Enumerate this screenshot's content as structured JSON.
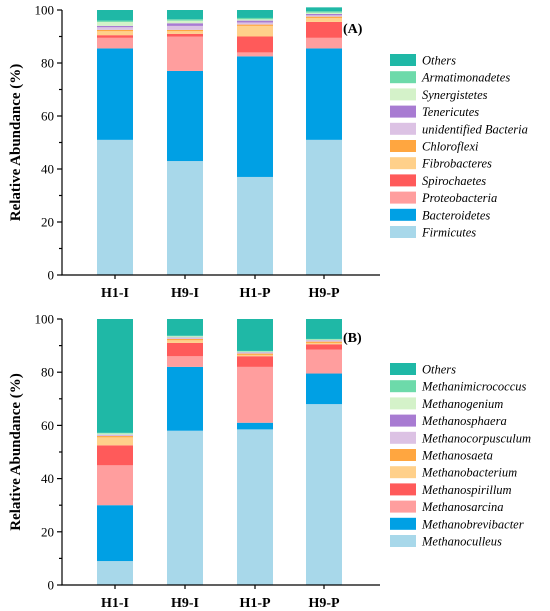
{
  "chart_data": [
    {
      "type": "bar",
      "stacked": true,
      "panel_label": "(A)",
      "ylabel": "Relative Abundance (%)",
      "ylim": [
        0,
        100
      ],
      "yticks": [
        "0",
        "20",
        "40",
        "60",
        "80",
        "100"
      ],
      "categories": [
        "H1-I",
        "H9-I",
        "H1-P",
        "H9-P"
      ],
      "legend_position": "right",
      "series": [
        {
          "name": "Firmicutes",
          "color": "#a8d8ea",
          "values": [
            51.0,
            43.0,
            37.0,
            51.0
          ]
        },
        {
          "name": "Bacteroidetes",
          "color": "#00a0e4",
          "values": [
            34.5,
            34.0,
            45.5,
            34.5
          ]
        },
        {
          "name": "Proteobacteria",
          "color": "#ff9e9e",
          "values": [
            4.0,
            13.0,
            1.5,
            4.0
          ]
        },
        {
          "name": "Spirochaetes",
          "color": "#ff5a5a",
          "values": [
            1.0,
            1.0,
            6.0,
            6.0
          ]
        },
        {
          "name": "Fibrobacteres",
          "color": "#ffd08a",
          "values": [
            1.5,
            1.0,
            4.0,
            1.5
          ]
        },
        {
          "name": "Chloroflexi",
          "color": "#ffa640",
          "values": [
            0.5,
            0.5,
            0.5,
            0.5
          ]
        },
        {
          "name": "unidentified Bacteria",
          "color": "#dcc2e4",
          "values": [
            1.0,
            1.5,
            0.8,
            0.5
          ]
        },
        {
          "name": "Tenericutes",
          "color": "#a87bd2",
          "values": [
            0.5,
            1.0,
            0.7,
            0.5
          ]
        },
        {
          "name": "Synergistetes",
          "color": "#d4f2c9",
          "values": [
            1.5,
            1.0,
            0.5,
            0.5
          ]
        },
        {
          "name": "Armatimonadetes",
          "color": "#6ddaaa",
          "values": [
            0.5,
            0.5,
            0.5,
            0.5
          ]
        },
        {
          "name": "Others",
          "color": "#1fb8a6",
          "values": [
            4.0,
            3.5,
            3.0,
            1.5
          ]
        }
      ]
    },
    {
      "type": "bar",
      "stacked": true,
      "panel_label": "(B)",
      "ylabel": "Relative Abundance (%)",
      "ylim": [
        0,
        100
      ],
      "yticks": [
        "0",
        "20",
        "40",
        "60",
        "80",
        "100"
      ],
      "categories": [
        "H1-I",
        "H9-I",
        "H1-P",
        "H9-P"
      ],
      "legend_position": "right",
      "series": [
        {
          "name": "Methanoculleus",
          "color": "#a8d8ea",
          "values": [
            9.0,
            58.0,
            58.5,
            68.0
          ]
        },
        {
          "name": "Methanobrevibacter",
          "color": "#00a0e4",
          "values": [
            21.0,
            24.0,
            2.5,
            11.5
          ]
        },
        {
          "name": "Methanosarcina",
          "color": "#ff9e9e",
          "values": [
            15.0,
            4.0,
            21.0,
            9.0
          ]
        },
        {
          "name": "Methanospirillum",
          "color": "#ff5a5a",
          "values": [
            7.5,
            5.0,
            4.0,
            2.0
          ]
        },
        {
          "name": "Methanobacterium",
          "color": "#ffd08a",
          "values": [
            3.0,
            1.0,
            0.5,
            0.5
          ]
        },
        {
          "name": "Methanosaeta",
          "color": "#ffa640",
          "values": [
            0.5,
            0.5,
            0.5,
            0.5
          ]
        },
        {
          "name": "Methanocorpusculum",
          "color": "#dcc2e4",
          "values": [
            0.3,
            0.3,
            0.3,
            0.3
          ]
        },
        {
          "name": "Methanosphaera",
          "color": "#a87bd2",
          "values": [
            0.2,
            0.2,
            0.2,
            0.2
          ]
        },
        {
          "name": "Methanogenium",
          "color": "#d4f2c9",
          "values": [
            0.5,
            0.5,
            0.3,
            0.3
          ]
        },
        {
          "name": "Methanimicrococcus",
          "color": "#6ddaaa",
          "values": [
            0.2,
            0.2,
            0.2,
            0.2
          ]
        },
        {
          "name": "Others",
          "color": "#1fb8a6",
          "values": [
            42.8,
            6.3,
            12.0,
            7.5
          ]
        }
      ]
    }
  ]
}
